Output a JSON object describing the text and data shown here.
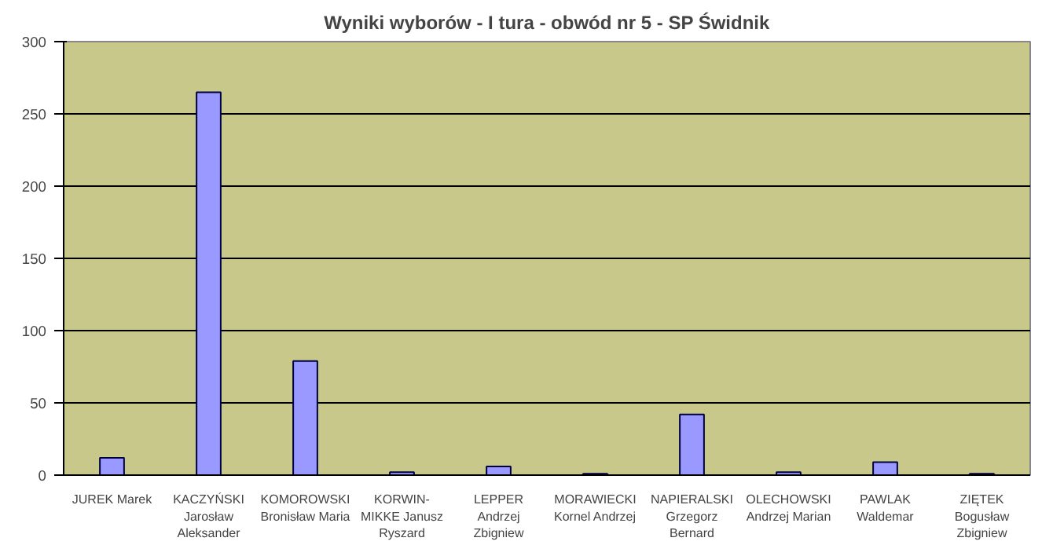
{
  "chart_data": {
    "type": "bar",
    "title": "Wyniki wyborów - I tura - obwód nr 5 - SP Świdnik",
    "categories": [
      "JUREK Marek",
      "KACZYŃSKI\nJarosław\nAleksander",
      "KOMOROWSKI\nBronisław Maria",
      "KORWIN-\nMIKKE Janusz\nRyszard",
      "LEPPER\nAndrzej\nZbigniew",
      "MORAWIECKI\nKornel Andrzej",
      "NAPIERALSKI\nGrzegorz\nBernard",
      "OLECHOWSKI\nAndrzej Marian",
      "PAWLAK\nWaldemar",
      "ZIĘTEK\nBogusław\nZbigniew"
    ],
    "values": [
      12,
      265,
      79,
      2,
      6,
      1,
      42,
      2,
      9,
      1
    ],
    "color": "#9999ff",
    "ylim": [
      0,
      300
    ],
    "yticks": [
      0,
      50,
      100,
      150,
      200,
      250,
      300
    ],
    "grid": "y"
  }
}
